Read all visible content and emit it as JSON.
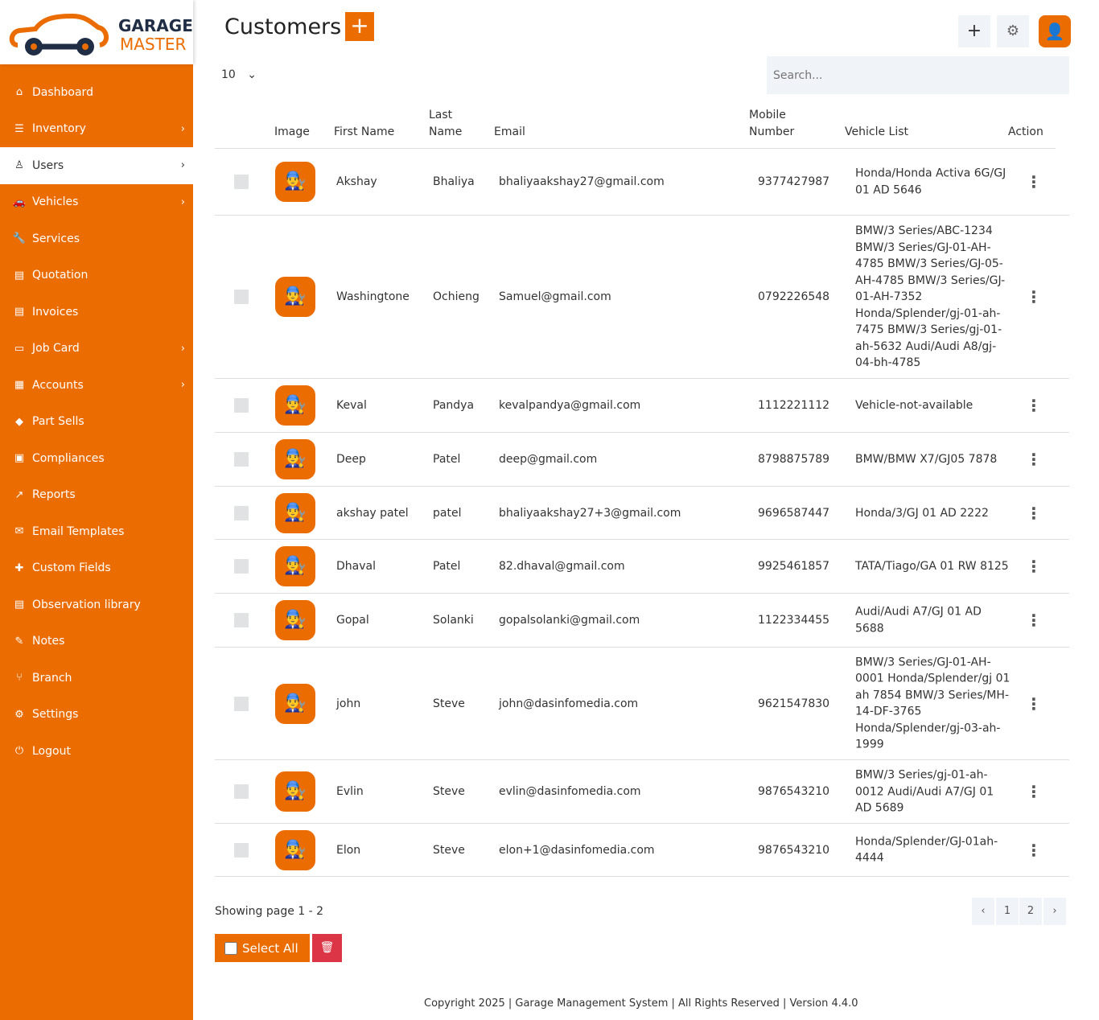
{
  "brand": {
    "line1": "GARAGE",
    "line2": "MASTER",
    "accent": "#eb6c00"
  },
  "sidebar": {
    "items": [
      {
        "label": "Dashboard",
        "icon": "home-icon",
        "glyph": "⌂",
        "chev": ""
      },
      {
        "label": "Inventory",
        "icon": "sliders-icon",
        "glyph": "☰",
        "chev": "›"
      },
      {
        "label": "Users",
        "icon": "user-icon",
        "glyph": "♙",
        "chev": "›",
        "active": true
      },
      {
        "label": "Vehicles",
        "icon": "car-icon",
        "glyph": "🚗",
        "chev": "›"
      },
      {
        "label": "Services",
        "icon": "wrench-icon",
        "glyph": "🔧",
        "chev": ""
      },
      {
        "label": "Quotation",
        "icon": "file-icon",
        "glyph": "▤",
        "chev": ""
      },
      {
        "label": "Invoices",
        "icon": "invoice-icon",
        "glyph": "▤",
        "chev": ""
      },
      {
        "label": "Job Card",
        "icon": "card-icon",
        "glyph": "▭",
        "chev": "›"
      },
      {
        "label": "Accounts",
        "icon": "calculator-icon",
        "glyph": "▦",
        "chev": "›"
      },
      {
        "label": "Part Sells",
        "icon": "tag-icon",
        "glyph": "◆",
        "chev": ""
      },
      {
        "label": "Compliances",
        "icon": "clipboard-icon",
        "glyph": "▣",
        "chev": ""
      },
      {
        "label": "Reports",
        "icon": "chart-icon",
        "glyph": "↗",
        "chev": ""
      },
      {
        "label": "Email Templates",
        "icon": "email-icon",
        "glyph": "✉",
        "chev": ""
      },
      {
        "label": "Custom Fields",
        "icon": "puzzle-icon",
        "glyph": "✚",
        "chev": ""
      },
      {
        "label": "Observation library",
        "icon": "document-icon",
        "glyph": "▤",
        "chev": ""
      },
      {
        "label": "Notes",
        "icon": "edit-icon",
        "glyph": "✎",
        "chev": ""
      },
      {
        "label": "Branch",
        "icon": "branch-icon",
        "glyph": "⑂",
        "chev": ""
      },
      {
        "label": "Settings",
        "icon": "gear-icon",
        "glyph": "⚙",
        "chev": ""
      },
      {
        "label": "Logout",
        "icon": "power-icon",
        "glyph": "⏻",
        "chev": ""
      }
    ]
  },
  "header": {
    "title": "Customers",
    "add": "+",
    "plus": "+",
    "gear": "⚙"
  },
  "controls": {
    "page_length": "10",
    "search_placeholder": "Search..."
  },
  "table": {
    "headers": [
      "Image",
      "First Name",
      "Last Name",
      "Email",
      "Mobile Number",
      "Vehicle List",
      "Action"
    ],
    "rows": [
      {
        "first": "Akshay",
        "last": "Bhaliya",
        "email": "bhaliyaakshay27@gmail.com",
        "mobile": "9377427987",
        "vehicles": "Honda/Honda Activa 6G/GJ 01 AD 5646"
      },
      {
        "first": "Washingtone",
        "last": "Ochieng",
        "email": "Samuel@gmail.com",
        "mobile": "0792226548",
        "vehicles": "BMW/3 Series/ABC-1234 BMW/3 Series/GJ-01-AH-4785 BMW/3 Series/GJ-05-AH-4785 BMW/3 Series/GJ-01-AH-7352 Honda/Splender/gj-01-ah-7475 BMW/3 Series/gj-01-ah-5632 Audi/Audi A8/gj-04-bh-4785"
      },
      {
        "first": "Keval",
        "last": "Pandya",
        "email": "kevalpandya@gmail.com",
        "mobile": "1112221112",
        "vehicles": "Vehicle-not-available"
      },
      {
        "first": "Deep",
        "last": "Patel",
        "email": "deep@gmail.com",
        "mobile": "8798875789",
        "vehicles": "BMW/BMW X7/GJ05 7878"
      },
      {
        "first": "akshay patel",
        "last": "patel",
        "email": "bhaliyaakshay27+3@gmail.com",
        "mobile": "9696587447",
        "vehicles": "Honda/3/GJ 01 AD 2222"
      },
      {
        "first": "Dhaval",
        "last": "Patel",
        "email": "82.dhaval@gmail.com",
        "mobile": "9925461857",
        "vehicles": "TATA/Tiago/GA 01 RW 8125"
      },
      {
        "first": "Gopal",
        "last": "Solanki",
        "email": "gopalsolanki@gmail.com",
        "mobile": "1122334455",
        "vehicles": "Audi/Audi A7/GJ 01 AD 5688"
      },
      {
        "first": "john",
        "last": "Steve",
        "email": "john@dasinfomedia.com",
        "mobile": "9621547830",
        "vehicles": "BMW/3 Series/GJ-01-AH-0001 Honda/Splender/gj 01 ah 7854 BMW/3 Series/MH-14-DF-3765 Honda/Splender/gj-03-ah-1999"
      },
      {
        "first": "Evlin",
        "last": "Steve",
        "email": "evlin@dasinfomedia.com",
        "mobile": "9876543210",
        "vehicles": "BMW/3 Series/gj-01-ah-0012 Audi/Audi A7/GJ 01 AD 5689"
      },
      {
        "first": "Elon",
        "last": "Steve",
        "email": "elon+1@dasinfomedia.com",
        "mobile": "9876543210",
        "vehicles": "Honda/Splender/GJ-01ah-4444"
      }
    ]
  },
  "footer": {
    "showing": "Showing page 1 - 2",
    "pages": [
      "‹",
      "1",
      "2",
      "›"
    ],
    "select_all": "Select All",
    "copyright": "Copyright 2025 | Garage Management System | All Rights Reserved | Version 4.4.0"
  }
}
